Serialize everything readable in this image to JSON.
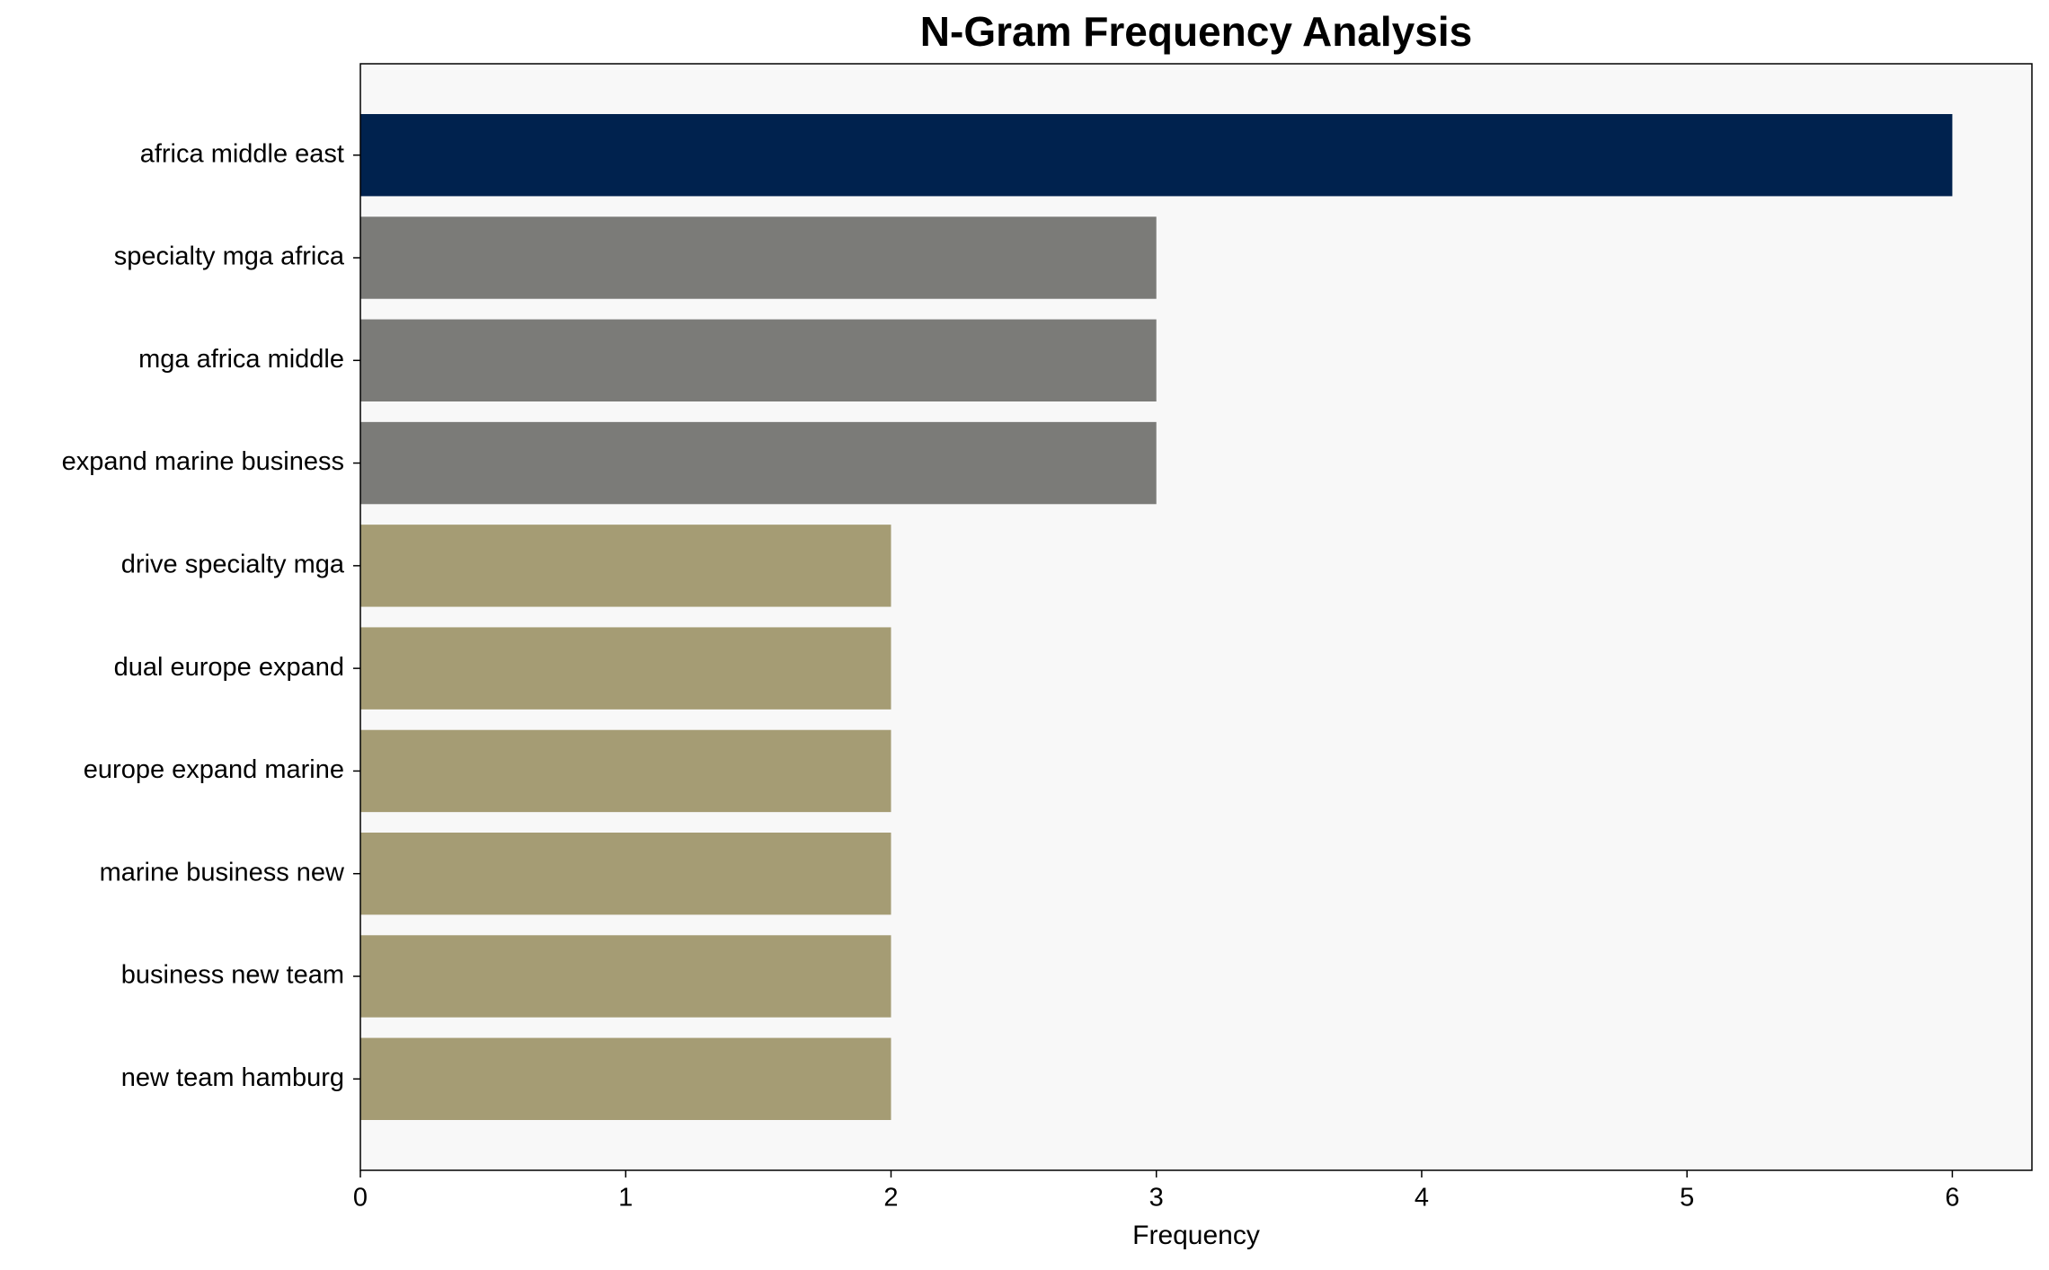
{
  "chart_data": {
    "type": "barh",
    "title": "N-Gram Frequency Analysis",
    "xlabel": "Frequency",
    "categories": [
      "africa middle east",
      "specialty mga africa",
      "mga africa middle",
      "expand marine business",
      "drive specialty mga",
      "dual europe expand",
      "europe expand marine",
      "marine business new",
      "business new team",
      "new team hamburg"
    ],
    "values": [
      6,
      3,
      3,
      3,
      2,
      2,
      2,
      2,
      2,
      2
    ],
    "colors": [
      "#00224e",
      "#7b7b78",
      "#7b7b78",
      "#7b7b78",
      "#a59c74",
      "#a59c74",
      "#a59c74",
      "#a59c74",
      "#a59c74",
      "#a59c74"
    ],
    "xlim": [
      0,
      6.3
    ],
    "xticks": [
      0,
      1,
      2,
      3,
      4,
      5,
      6
    ],
    "grid": false
  }
}
